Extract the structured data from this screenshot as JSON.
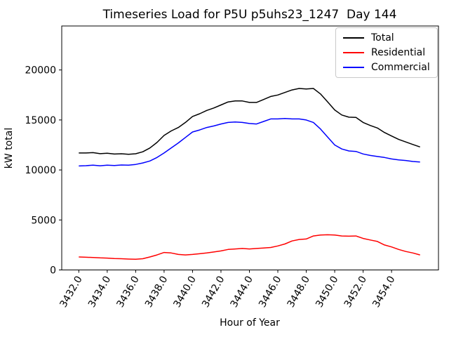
{
  "figure": {
    "background": "#ffffff",
    "axes_edge_color": "#000000"
  },
  "chart_data": {
    "type": "line",
    "title": "Timeseries Load for P5U p5uhs23_1247  Day 144",
    "xlabel": "Hour of Year",
    "ylabel": "kW total",
    "grid": false,
    "legend": {
      "position": "upper right"
    },
    "xlim": [
      3430.8,
      3457.3
    ],
    "ylim": [
      0,
      24400
    ],
    "x_ticks": [
      3432,
      3434,
      3436,
      3438,
      3440,
      3442,
      3444,
      3446,
      3448,
      3450,
      3452,
      3454
    ],
    "x_tick_labels": [
      "3432.0",
      "3434.0",
      "3436.0",
      "3438.0",
      "3440.0",
      "3442.0",
      "3444.0",
      "3446.0",
      "3448.0",
      "3450.0",
      "3452.0",
      "3454.0"
    ],
    "y_ticks": [
      0,
      5000,
      10000,
      15000,
      20000
    ],
    "y_tick_labels": [
      "0",
      "5000",
      "10000",
      "15000",
      "20000"
    ],
    "x": [
      3432,
      3432.5,
      3433,
      3433.5,
      3434,
      3434.5,
      3435,
      3435.5,
      3436,
      3436.5,
      3437,
      3437.5,
      3438,
      3438.5,
      3439,
      3439.5,
      3440,
      3440.5,
      3441,
      3441.5,
      3442,
      3442.5,
      3443,
      3443.5,
      3444,
      3444.5,
      3445,
      3445.5,
      3446,
      3446.5,
      3447,
      3447.5,
      3448,
      3448.5,
      3449,
      3449.5,
      3450,
      3450.5,
      3451,
      3451.5,
      3452,
      3452.5,
      3453,
      3453.5,
      3454,
      3454.5,
      3455,
      3455.5,
      3456
    ],
    "series": [
      {
        "name": "Total",
        "color": "#000000",
        "values": [
          11700,
          11700,
          11730,
          11630,
          11670,
          11590,
          11620,
          11570,
          11620,
          11820,
          12200,
          12750,
          13450,
          13900,
          14250,
          14750,
          15350,
          15620,
          15950,
          16200,
          16500,
          16800,
          16900,
          16900,
          16750,
          16750,
          17050,
          17350,
          17500,
          17750,
          18000,
          18150,
          18100,
          18150,
          17600,
          16820,
          16000,
          15500,
          15280,
          15250,
          14750,
          14450,
          14200,
          13750,
          13400,
          13050,
          12800,
          12550,
          12300
        ]
      },
      {
        "name": "Residential",
        "color": "#ff0000",
        "values": [
          1300,
          1270,
          1250,
          1210,
          1190,
          1140,
          1120,
          1090,
          1070,
          1120,
          1300,
          1500,
          1750,
          1700,
          1550,
          1500,
          1550,
          1620,
          1700,
          1800,
          1900,
          2050,
          2100,
          2150,
          2100,
          2150,
          2200,
          2250,
          2400,
          2600,
          2900,
          3050,
          3100,
          3400,
          3500,
          3520,
          3500,
          3400,
          3380,
          3400,
          3150,
          3000,
          2850,
          2500,
          2300,
          2050,
          1850,
          1700,
          1500
        ]
      },
      {
        "name": "Commercial",
        "color": "#0000ff",
        "values": [
          10400,
          10430,
          10480,
          10420,
          10480,
          10450,
          10500,
          10480,
          10550,
          10700,
          10900,
          11250,
          11700,
          12200,
          12700,
          13250,
          13800,
          14000,
          14250,
          14400,
          14600,
          14750,
          14800,
          14750,
          14650,
          14600,
          14850,
          15100,
          15100,
          15150,
          15100,
          15100,
          15000,
          14750,
          14100,
          13300,
          12500,
          12100,
          11900,
          11850,
          11600,
          11450,
          11350,
          11250,
          11100,
          11000,
          10950,
          10850,
          10800
        ]
      }
    ]
  }
}
